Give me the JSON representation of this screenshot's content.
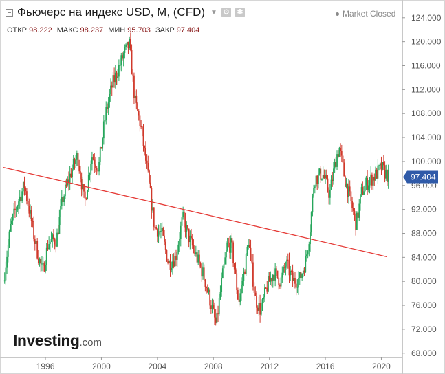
{
  "header": {
    "title": "Фьючерс на индекс USD, M, (CFD)",
    "market_status": "Market Closed",
    "ohlc": [
      {
        "label": "ОТКР",
        "value": "98.222"
      },
      {
        "label": "МАКС",
        "value": "98.237"
      },
      {
        "label": "МИН",
        "value": "95.703"
      },
      {
        "label": "ЗАКР",
        "value": "97.404"
      }
    ]
  },
  "branding": {
    "logo_main": "Investing",
    "logo_sub": ".com"
  },
  "chart_data": {
    "type": "candlestick",
    "x_ticks": [
      "1996",
      "2000",
      "2004",
      "2008",
      "2012",
      "2016",
      "2020"
    ],
    "y_ticks": [
      "68.000",
      "72.000",
      "76.000",
      "80.000",
      "84.000",
      "88.000",
      "92.000",
      "96.000",
      "100.000",
      "104.000",
      "108.000",
      "112.000",
      "116.000",
      "120.000",
      "124.000"
    ],
    "ylim": [
      67.4,
      126.5
    ],
    "xlim": [
      1993.0,
      2021.5
    ],
    "last_price": "97.404",
    "last_value": 97.404,
    "up_color": "#26a65b",
    "down_color": "#d0392b",
    "trendline_color": "#e53935",
    "price_line_color": "#2f5aa8",
    "trendline": {
      "start": [
        1993.0,
        99.0
      ],
      "end": [
        2020.4,
        84.1
      ]
    },
    "close_path": [
      [
        1993.0,
        80.0
      ],
      [
        1993.5,
        89.0
      ],
      [
        1994.0,
        93.0
      ],
      [
        1994.5,
        96.0
      ],
      [
        1995.0,
        90.0
      ],
      [
        1995.3,
        86.0
      ],
      [
        1995.8,
        81.5
      ],
      [
        1996.2,
        86.5
      ],
      [
        1996.8,
        87.0
      ],
      [
        1997.2,
        93.5
      ],
      [
        1997.8,
        98.0
      ],
      [
        1998.3,
        101.0
      ],
      [
        1998.8,
        93.0
      ],
      [
        1999.3,
        101.0
      ],
      [
        1999.8,
        99.0
      ],
      [
        2000.3,
        108.0
      ],
      [
        2000.8,
        113.0
      ],
      [
        2001.3,
        116.0
      ],
      [
        2001.6,
        118.0
      ],
      [
        2002.0,
        119.5
      ],
      [
        2002.4,
        110.0
      ],
      [
        2002.8,
        106.0
      ],
      [
        2003.3,
        98.0
      ],
      [
        2003.8,
        89.0
      ],
      [
        2004.3,
        88.0
      ],
      [
        2004.8,
        83.0
      ],
      [
        2005.3,
        84.0
      ],
      [
        2005.8,
        90.5
      ],
      [
        2006.3,
        87.0
      ],
      [
        2006.8,
        84.0
      ],
      [
        2007.3,
        81.0
      ],
      [
        2007.8,
        76.5
      ],
      [
        2008.2,
        72.5
      ],
      [
        2008.6,
        80.0
      ],
      [
        2009.0,
        86.0
      ],
      [
        2009.3,
        86.0
      ],
      [
        2009.8,
        76.5
      ],
      [
        2010.3,
        83.0
      ],
      [
        2010.5,
        87.0
      ],
      [
        2011.0,
        77.0
      ],
      [
        2011.4,
        75.0
      ],
      [
        2011.8,
        79.0
      ],
      [
        2012.3,
        81.5
      ],
      [
        2012.8,
        80.0
      ],
      [
        2013.2,
        83.0
      ],
      [
        2013.7,
        80.0
      ],
      [
        2014.2,
        80.5
      ],
      [
        2014.6,
        83.5
      ],
      [
        2014.9,
        88.5
      ],
      [
        2015.2,
        97.0
      ],
      [
        2015.8,
        98.0
      ],
      [
        2016.3,
        94.5
      ],
      [
        2016.8,
        101.0
      ],
      [
        2017.0,
        102.2
      ],
      [
        2017.4,
        97.0
      ],
      [
        2017.9,
        92.5
      ],
      [
        2018.2,
        89.5
      ],
      [
        2018.6,
        95.0
      ],
      [
        2019.0,
        96.5
      ],
      [
        2019.5,
        97.5
      ],
      [
        2020.0,
        99.0
      ],
      [
        2020.3,
        98.0
      ],
      [
        2020.5,
        97.4
      ]
    ]
  }
}
